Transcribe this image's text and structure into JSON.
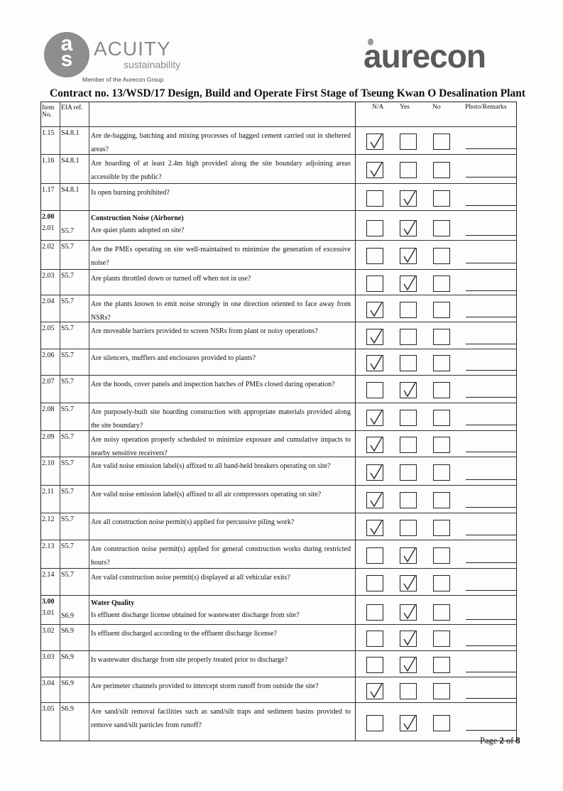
{
  "header": {
    "acuity_logo_letters": "asc",
    "acuity_name": "ACUITY",
    "acuity_sub": "sustainability",
    "acuity_member": "Member of the Aurecon Group",
    "aurecon_logo": "aurecon"
  },
  "title": "Contract no.  13/WSD/17 Design, Build and Operate First Stage of Tseung Kwan O Desalination Plant",
  "columns": {
    "item": "Item No.",
    "eia": "EIA ref.",
    "na": "N/A",
    "yes": "Yes",
    "no": "No",
    "remarks": "Photo/Remarks"
  },
  "rows": [
    {
      "item": "1.15",
      "eia": "S4.8.1",
      "q": "Are de-bagging, batching and mixing processes of bagged cement carried out in sheltered areas?",
      "check": "na"
    },
    {
      "item": "1.16",
      "eia": "S4.8.1",
      "q": "Are hoarding of at least 2.4m high provided along the site boundary adjoining areas accessible by the public?",
      "check": "na"
    },
    {
      "item": "1.17",
      "eia": "S4.8.1",
      "q": "Is open burning prohibited?",
      "check": "yes"
    },
    {
      "section_no": "2.00",
      "section": "Construction Noise (Airborne)",
      "item": "2.01",
      "eia": "S5.7",
      "q": "Are quiet plants adopted on site?",
      "check": "yes"
    },
    {
      "item": "2.02",
      "eia": "S5.7",
      "q": "Are the PMEs operating on site well-maintained to minimize the generation of excessive noise?",
      "check": "yes"
    },
    {
      "item": "2.03",
      "eia": "S5.7",
      "q": "Are plants throttled down or turned off when not in use?",
      "check": "yes"
    },
    {
      "item": "2.04",
      "eia": "S5.7",
      "q": "Are the plants known to emit noise strongly in one direction oriented to face away from NSRs?",
      "check": "na"
    },
    {
      "item": "2.05",
      "eia": "S5.7",
      "q": "Are moveable barriers provided to screen NSRs from plant or noisy operations?",
      "check": "na"
    },
    {
      "item": "2.06",
      "eia": "S5.7",
      "q": "Are silencers, mufflers and enclosures provided to plants?",
      "check": "na"
    },
    {
      "item": "2.07",
      "eia": "S5.7",
      "q": "Are the hoods, cover panels and inspection hatches of PMEs closed during operation?",
      "check": "yes"
    },
    {
      "item": "2.08",
      "eia": "S5.7",
      "q": "Are purposely-built site hoarding construction with appropriate materials provided along the site boundary?",
      "check": "na"
    },
    {
      "item": "2.09",
      "eia": "S5.7",
      "q": "Are noisy operation properly scheduled to minimize exposure and cumulative impacts to nearby sensitive receivers?",
      "check": "na"
    },
    {
      "item": "2.10",
      "eia": "S5.7",
      "q": "Are valid noise emission label(s) affixed to all hand-held breakers operating on site?",
      "check": "na"
    },
    {
      "item": "2.11",
      "eia": "S5.7",
      "q": "Are valid noise emission label(s) affixed to all air compressors operating on site?",
      "check": "na"
    },
    {
      "item": "2.12",
      "eia": "S5.7",
      "q": "Are all construction noise permit(s) applied for percussive piling work?",
      "check": "na"
    },
    {
      "item": "2.13",
      "eia": "S5.7",
      "q": "Are construction noise permit(s) applied for general construction works during restricted hours?",
      "check": "yes"
    },
    {
      "item": "2.14",
      "eia": "S5.7",
      "q": "Are valid construction noise permit(s) displayed at all vehicular exits?",
      "check": "yes"
    },
    {
      "section_no": "3.00",
      "section": "Water Quality",
      "item": "3.01",
      "eia": "S6.9",
      "q": "Is effluent discharge license obtained for wastewater discharge from site?",
      "check": "yes"
    },
    {
      "item": "3.02",
      "eia": "S6.9",
      "q": "Is effluent discharged according to the effluent discharge license?",
      "check": "yes"
    },
    {
      "item": "3.03",
      "eia": "S6.9",
      "q": "Is wastewater discharge from site properly treated prior to discharge?",
      "check": "yes"
    },
    {
      "item": "3.04",
      "eia": "S6.9",
      "q": "Are perimeter channels provided to intercept storm runoff from outside the site?",
      "check": "na"
    },
    {
      "item": "3.05",
      "eia": "S6.9",
      "q": "Are sand/silt removal facilities such as sand/silt traps and sediment basins provided to remove sand/silt particles from runoff?",
      "check": "yes"
    }
  ],
  "footer": {
    "page_prefix": "Page ",
    "page": "2",
    "page_of": " of ",
    "total": "8"
  }
}
